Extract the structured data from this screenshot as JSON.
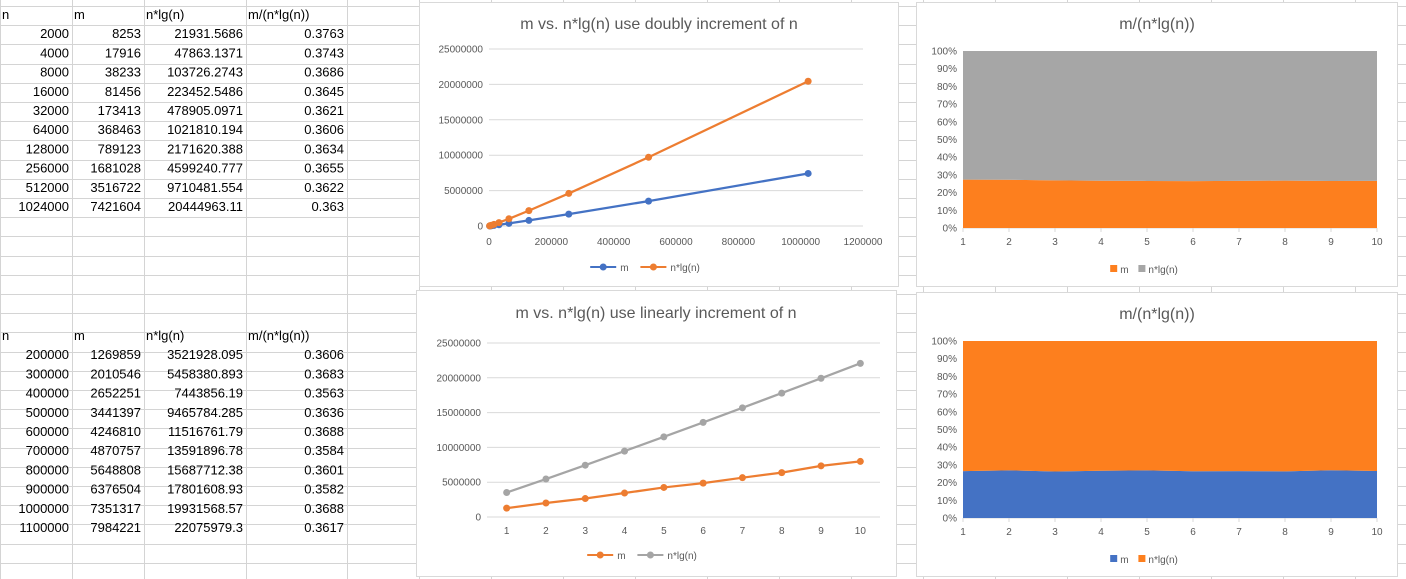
{
  "table1": {
    "headers": [
      "n",
      "m",
      "n*lg(n)",
      "m/(n*lg(n))"
    ],
    "rows": [
      [
        "2000",
        "8253",
        "21931.5686",
        "0.3763"
      ],
      [
        "4000",
        "17916",
        "47863.1371",
        "0.3743"
      ],
      [
        "8000",
        "38233",
        "103726.2743",
        "0.3686"
      ],
      [
        "16000",
        "81456",
        "223452.5486",
        "0.3645"
      ],
      [
        "32000",
        "173413",
        "478905.0971",
        "0.3621"
      ],
      [
        "64000",
        "368463",
        "1021810.194",
        "0.3606"
      ],
      [
        "128000",
        "789123",
        "2171620.388",
        "0.3634"
      ],
      [
        "256000",
        "1681028",
        "4599240.777",
        "0.3655"
      ],
      [
        "512000",
        "3516722",
        "9710481.554",
        "0.3622"
      ],
      [
        "1024000",
        "7421604",
        "20444963.11",
        "0.363"
      ]
    ]
  },
  "table2": {
    "headers": [
      "n",
      "m",
      "n*lg(n)",
      "m/(n*lg(n))"
    ],
    "rows": [
      [
        "200000",
        "1269859",
        "3521928.095",
        "0.3606"
      ],
      [
        "300000",
        "2010546",
        "5458380.893",
        "0.3683"
      ],
      [
        "400000",
        "2652251",
        "7443856.19",
        "0.3563"
      ],
      [
        "500000",
        "3441397",
        "9465784.285",
        "0.3636"
      ],
      [
        "600000",
        "4246810",
        "11516761.79",
        "0.3688"
      ],
      [
        "700000",
        "4870757",
        "13591896.78",
        "0.3584"
      ],
      [
        "800000",
        "5648808",
        "15687712.38",
        "0.3601"
      ],
      [
        "900000",
        "6376504",
        "17801608.93",
        "0.3582"
      ],
      [
        "1000000",
        "7351317",
        "19931568.57",
        "0.3688"
      ],
      [
        "1100000",
        "7984221",
        "22075979.3",
        "0.3617"
      ]
    ]
  },
  "colors": {
    "blue": "#4472c4",
    "orange": "#ed7d31",
    "gray": "#a5a5a5",
    "area_orange": "#fd7f1e",
    "area_gray": "#a6a6a6",
    "area_blue": "#4472c4",
    "grid": "#d9d9d9",
    "cell_border": "#d4d4d4",
    "text": "#595959",
    "title": "#595959"
  },
  "chart_data": [
    {
      "type": "scatter",
      "title": "m vs. n*lg(n) use doubly increment of n",
      "xlim": [
        0,
        1200000
      ],
      "xticks": [
        "0",
        "200000",
        "400000",
        "600000",
        "800000",
        "1000000",
        "1200000"
      ],
      "ylim": [
        0,
        25000000
      ],
      "yticks": [
        "0",
        "5000000",
        "10000000",
        "15000000",
        "20000000",
        "25000000"
      ],
      "x": [
        2000,
        4000,
        8000,
        16000,
        32000,
        64000,
        128000,
        256000,
        512000,
        1024000
      ],
      "series": [
        {
          "name": "m",
          "color": "#4472c4",
          "values": [
            8253,
            17916,
            38233,
            81456,
            173413,
            368463,
            789123,
            1681028,
            3516722,
            7421604
          ]
        },
        {
          "name": "n*lg(n)",
          "color": "#ed7d31",
          "values": [
            21931.5686,
            47863.1371,
            103726.2743,
            223452.5486,
            478905.0971,
            1021810.194,
            2171620.388,
            4599240.777,
            9710481.554,
            20444963.11
          ]
        }
      ],
      "legend": "bottom",
      "grid": true
    },
    {
      "type": "area",
      "stacked_percent": true,
      "title": "m/(n*lg(n))",
      "categories": [
        "1",
        "2",
        "3",
        "4",
        "5",
        "6",
        "7",
        "8",
        "9",
        "10"
      ],
      "ylim": [
        0,
        100
      ],
      "yticks": [
        "0%",
        "10%",
        "20%",
        "30%",
        "40%",
        "50%",
        "60%",
        "70%",
        "80%",
        "90%",
        "100%"
      ],
      "series": [
        {
          "name": "m",
          "color": "#fd7f1e",
          "values": [
            8253,
            17916,
            38233,
            81456,
            173413,
            368463,
            789123,
            1681028,
            3516722,
            7421604
          ]
        },
        {
          "name": "n*lg(n)",
          "color": "#a6a6a6",
          "values": [
            21931.5686,
            47863.1371,
            103726.2743,
            223452.5486,
            478905.0971,
            1021810.194,
            2171620.388,
            4599240.777,
            9710481.554,
            20444963.11
          ]
        }
      ],
      "legend": "bottom",
      "grid": false
    },
    {
      "type": "line",
      "title": "m vs. n*lg(n) use linearly increment of n",
      "categories": [
        "1",
        "2",
        "3",
        "4",
        "5",
        "6",
        "7",
        "8",
        "9",
        "10"
      ],
      "ylim": [
        0,
        25000000
      ],
      "yticks": [
        "0",
        "5000000",
        "10000000",
        "15000000",
        "20000000",
        "25000000"
      ],
      "series": [
        {
          "name": "m",
          "color": "#ed7d31",
          "values": [
            1269859,
            2010546,
            2652251,
            3441397,
            4246810,
            4870757,
            5648808,
            6376504,
            7351317,
            7984221
          ]
        },
        {
          "name": "n*lg(n)",
          "color": "#a5a5a5",
          "values": [
            3521928.095,
            5458380.893,
            7443856.19,
            9465784.285,
            11516761.79,
            13591896.78,
            15687712.38,
            17801608.93,
            19931568.57,
            22075979.3
          ]
        }
      ],
      "legend": "bottom",
      "grid": true
    },
    {
      "type": "area",
      "stacked_percent": true,
      "title": "m/(n*lg(n))",
      "categories": [
        "1",
        "2",
        "3",
        "4",
        "5",
        "6",
        "7",
        "8",
        "9",
        "10"
      ],
      "ylim": [
        0,
        100
      ],
      "yticks": [
        "0%",
        "10%",
        "20%",
        "30%",
        "40%",
        "50%",
        "60%",
        "70%",
        "80%",
        "90%",
        "100%"
      ],
      "series": [
        {
          "name": "m",
          "color": "#4472c4",
          "values": [
            1269859,
            2010546,
            2652251,
            3441397,
            4246810,
            4870757,
            5648808,
            6376504,
            7351317,
            7984221
          ]
        },
        {
          "name": "n*lg(n)",
          "color": "#fd7f1e",
          "values": [
            3521928.095,
            5458380.893,
            7443856.19,
            9465784.285,
            11516761.79,
            13591896.78,
            15687712.38,
            17801608.93,
            19931568.57,
            22075979.3
          ]
        }
      ],
      "legend": "bottom",
      "grid": false
    }
  ]
}
